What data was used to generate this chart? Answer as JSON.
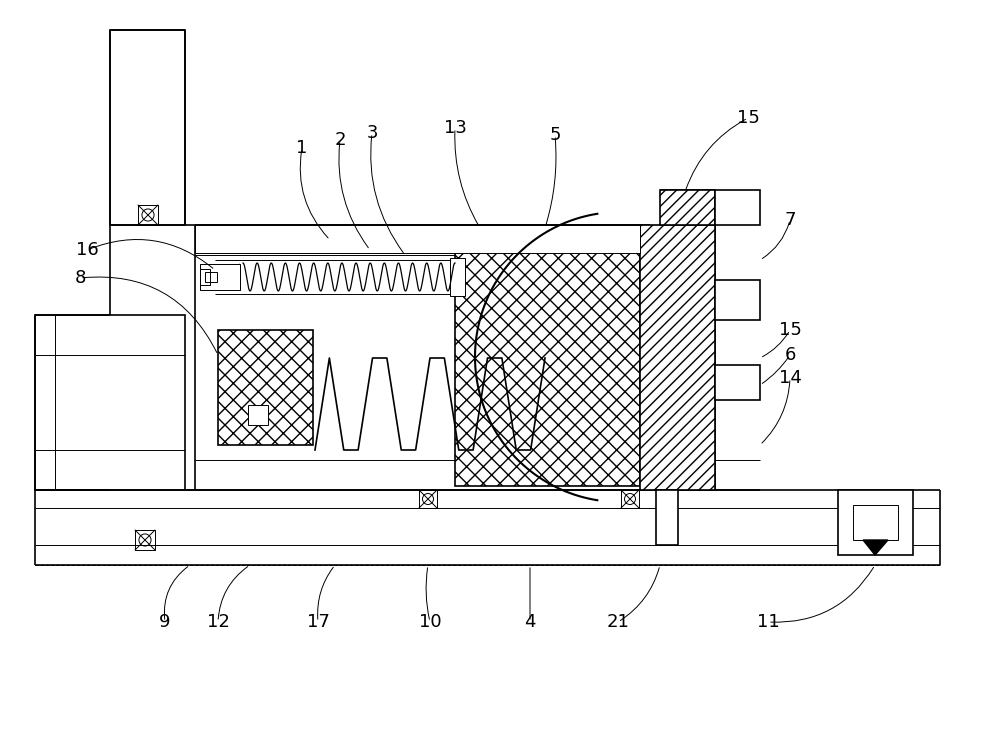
{
  "bg_color": "#ffffff",
  "line_color": "#000000",
  "lw": 1.2,
  "tlw": 0.7,
  "fig_width": 10.0,
  "fig_height": 7.31,
  "dpi": 100
}
